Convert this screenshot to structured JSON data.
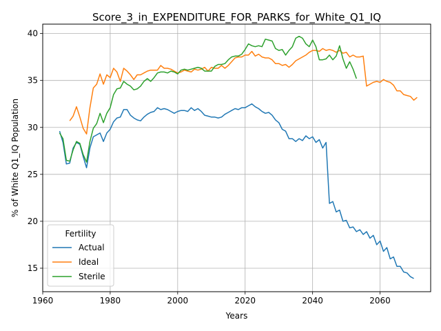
{
  "chart_data": {
    "type": "line",
    "title": "Score_3_in_EXPENDITURE_FOR_PARKS_for_White_Q1_IQ",
    "xlabel": "Years",
    "ylabel": "% of White Q1_IQ Population",
    "xlim": [
      1960,
      2075
    ],
    "ylim": [
      12.5,
      41
    ],
    "xticks": [
      1960,
      1980,
      2000,
      2020,
      2040,
      2060
    ],
    "yticks": [
      15,
      20,
      25,
      30,
      35,
      40
    ],
    "grid": true,
    "legend": {
      "title": "Fertility",
      "position": "lower-left"
    },
    "series": [
      {
        "name": "Actual",
        "color": "#1f77b4",
        "x_start": 1965,
        "values": [
          29.6,
          28.4,
          26.1,
          26.2,
          27.8,
          28.4,
          28.2,
          26.9,
          25.7,
          27.8,
          29.0,
          29.2,
          29.4,
          28.5,
          29.4,
          29.8,
          30.6,
          31.0,
          31.1,
          31.9,
          31.9,
          31.3,
          31.0,
          30.8,
          30.7,
          31.1,
          31.4,
          31.6,
          31.7,
          32.1,
          31.9,
          32.0,
          31.9,
          31.7,
          31.5,
          31.7,
          31.8,
          31.8,
          31.7,
          32.1,
          31.8,
          32.0,
          31.7,
          31.3,
          31.2,
          31.1,
          31.1,
          31.0,
          31.1,
          31.4,
          31.6,
          31.8,
          32.0,
          31.9,
          32.1,
          32.1,
          32.3,
          32.5,
          32.2,
          32.0,
          31.7,
          31.5,
          31.6,
          31.3,
          30.8,
          30.5,
          29.8,
          29.6,
          28.8,
          28.8,
          28.5,
          28.8,
          28.6,
          29.1,
          28.8,
          29.0,
          28.4,
          28.7,
          27.8,
          28.4,
          21.9,
          22.1,
          21.0,
          21.2,
          20.0,
          20.1,
          19.3,
          19.4,
          18.9,
          19.1,
          18.6,
          18.9,
          18.2,
          18.5,
          17.5,
          17.9,
          16.8,
          17.2,
          16.0,
          16.2,
          15.2,
          15.2,
          14.6,
          14.5,
          14.1,
          13.9
        ]
      },
      {
        "name": "Ideal",
        "color": "#ff7f0e",
        "x_start": 1968,
        "values": [
          30.7,
          31.2,
          32.2,
          31.1,
          29.9,
          29.3,
          32.1,
          34.2,
          34.6,
          35.7,
          34.6,
          35.6,
          35.3,
          36.3,
          35.9,
          34.9,
          36.3,
          36.0,
          35.6,
          35.1,
          35.6,
          35.6,
          35.8,
          36.0,
          36.1,
          36.1,
          36.1,
          36.6,
          36.3,
          36.3,
          36.2,
          36.0,
          35.8,
          35.9,
          36.1,
          36.0,
          35.9,
          36.2,
          36.1,
          36.2,
          36.4,
          36.0,
          36.4,
          36.3,
          36.3,
          36.6,
          36.3,
          36.6,
          37.0,
          37.4,
          37.5,
          37.5,
          37.7,
          37.7,
          38.1,
          37.6,
          37.8,
          37.5,
          37.4,
          37.4,
          37.2,
          36.8,
          36.8,
          36.6,
          36.7,
          36.4,
          36.7,
          37.1,
          37.3,
          37.5,
          37.7,
          38.0,
          38.2,
          38.2,
          38.1,
          38.4,
          38.2,
          38.3,
          38.2,
          38.0,
          38.2,
          37.9,
          38.0,
          37.5,
          37.7,
          37.5,
          37.5,
          37.6,
          34.4,
          34.6,
          34.8,
          34.9,
          34.8,
          35.1,
          34.9,
          34.8,
          34.5,
          33.9,
          33.9,
          33.5,
          33.4,
          33.3,
          32.9,
          33.2
        ]
      },
      {
        "name": "Sterile",
        "color": "#2ca02c",
        "x_start": 1965,
        "values": [
          29.4,
          28.8,
          26.5,
          26.4,
          27.6,
          28.5,
          28.3,
          27.1,
          26.3,
          28.5,
          29.9,
          30.4,
          31.5,
          30.5,
          31.5,
          32.1,
          33.5,
          34.1,
          34.2,
          34.9,
          34.6,
          34.4,
          34.0,
          34.1,
          34.4,
          34.9,
          35.2,
          34.9,
          35.3,
          35.8,
          35.9,
          35.9,
          35.8,
          36.0,
          35.9,
          35.7,
          36.1,
          36.2,
          36.1,
          36.2,
          36.3,
          36.4,
          36.3,
          36.0,
          36.0,
          36.0,
          36.5,
          36.7,
          36.7,
          36.8,
          37.2,
          37.5,
          37.6,
          37.6,
          37.8,
          38.3,
          38.9,
          38.7,
          38.6,
          38.7,
          38.6,
          39.4,
          39.3,
          39.2,
          38.4,
          38.2,
          38.3,
          37.7,
          38.2,
          38.6,
          39.5,
          39.7,
          39.5,
          38.9,
          38.6,
          39.3,
          38.6,
          37.2,
          37.2,
          37.3,
          37.7,
          37.2,
          37.6,
          38.7,
          37.3,
          36.3,
          37.0,
          36.2,
          35.2
        ]
      }
    ]
  }
}
